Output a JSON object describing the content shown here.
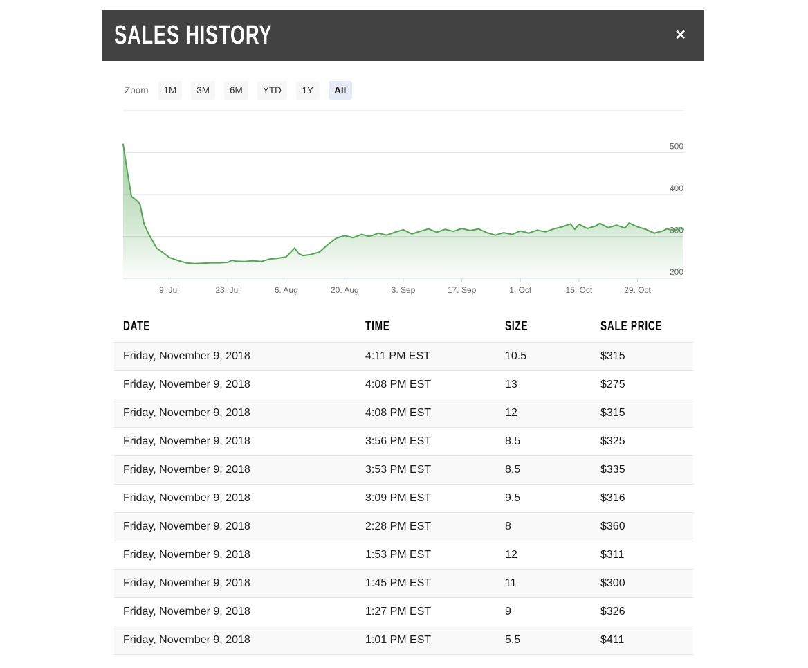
{
  "modal": {
    "title": "SALES HISTORY",
    "close_icon": "✕"
  },
  "range_selector": {
    "zoom_label": "Zoom",
    "buttons": [
      {
        "label": "1M",
        "selected": false
      },
      {
        "label": "3M",
        "selected": false
      },
      {
        "label": "6M",
        "selected": false
      },
      {
        "label": "YTD",
        "selected": false
      },
      {
        "label": "1Y",
        "selected": false
      },
      {
        "label": "All",
        "selected": true
      }
    ]
  },
  "chart_data": {
    "type": "area",
    "title": "",
    "xlabel": "",
    "ylabel": "",
    "legend": false,
    "grid": true,
    "y_labels_position": "right",
    "x_axis": {
      "range": [
        "2018-06-28",
        "2018-11-09"
      ],
      "ticks": [
        {
          "label": "9. Jul",
          "date": "2018-07-09"
        },
        {
          "label": "23. Jul",
          "date": "2018-07-23"
        },
        {
          "label": "6. Aug",
          "date": "2018-08-06"
        },
        {
          "label": "20. Aug",
          "date": "2018-08-20"
        },
        {
          "label": "3. Sep",
          "date": "2018-09-03"
        },
        {
          "label": "17. Sep",
          "date": "2018-09-17"
        },
        {
          "label": "1. Oct",
          "date": "2018-10-01"
        },
        {
          "label": "15. Oct",
          "date": "2018-10-15"
        },
        {
          "label": "29. Oct",
          "date": "2018-10-29"
        }
      ]
    },
    "y_axis": {
      "range": [
        200,
        600
      ],
      "tick_step": 100,
      "tick_labels": [
        "500",
        "400",
        "300",
        "200"
      ]
    },
    "series": [
      {
        "name": "Sale Price",
        "color": "#56a556",
        "points": [
          [
            "2018-06-28",
            520
          ],
          [
            "2018-06-29",
            455
          ],
          [
            "2018-06-30",
            395
          ],
          [
            "2018-07-01",
            388
          ],
          [
            "2018-07-02",
            378
          ],
          [
            "2018-07-03",
            330
          ],
          [
            "2018-07-04",
            308
          ],
          [
            "2018-07-06",
            272
          ],
          [
            "2018-07-08",
            258
          ],
          [
            "2018-07-09",
            250
          ],
          [
            "2018-07-11",
            243
          ],
          [
            "2018-07-13",
            237
          ],
          [
            "2018-07-15",
            235
          ],
          [
            "2018-07-17",
            236
          ],
          [
            "2018-07-19",
            237
          ],
          [
            "2018-07-21",
            237
          ],
          [
            "2018-07-23",
            238
          ],
          [
            "2018-07-24",
            243
          ],
          [
            "2018-07-25",
            241
          ],
          [
            "2018-07-27",
            240
          ],
          [
            "2018-07-29",
            242
          ],
          [
            "2018-07-31",
            240
          ],
          [
            "2018-08-02",
            246
          ],
          [
            "2018-08-04",
            248
          ],
          [
            "2018-08-06",
            251
          ],
          [
            "2018-08-08",
            272
          ],
          [
            "2018-08-09",
            259
          ],
          [
            "2018-08-10",
            254
          ],
          [
            "2018-08-12",
            257
          ],
          [
            "2018-08-14",
            263
          ],
          [
            "2018-08-16",
            281
          ],
          [
            "2018-08-18",
            296
          ],
          [
            "2018-08-20",
            302
          ],
          [
            "2018-08-22",
            297
          ],
          [
            "2018-08-24",
            305
          ],
          [
            "2018-08-26",
            300
          ],
          [
            "2018-08-28",
            308
          ],
          [
            "2018-08-30",
            303
          ],
          [
            "2018-09-01",
            310
          ],
          [
            "2018-09-03",
            316
          ],
          [
            "2018-09-05",
            306
          ],
          [
            "2018-09-07",
            312
          ],
          [
            "2018-09-09",
            318
          ],
          [
            "2018-09-11",
            310
          ],
          [
            "2018-09-13",
            317
          ],
          [
            "2018-09-15",
            312
          ],
          [
            "2018-09-17",
            319
          ],
          [
            "2018-09-19",
            314
          ],
          [
            "2018-09-21",
            318
          ],
          [
            "2018-09-23",
            309
          ],
          [
            "2018-09-25",
            303
          ],
          [
            "2018-09-27",
            309
          ],
          [
            "2018-09-29",
            305
          ],
          [
            "2018-10-01",
            313
          ],
          [
            "2018-10-03",
            308
          ],
          [
            "2018-10-05",
            315
          ],
          [
            "2018-10-07",
            311
          ],
          [
            "2018-10-09",
            318
          ],
          [
            "2018-10-11",
            323
          ],
          [
            "2018-10-13",
            330
          ],
          [
            "2018-10-14",
            317
          ],
          [
            "2018-10-15",
            329
          ],
          [
            "2018-10-17",
            319
          ],
          [
            "2018-10-19",
            325
          ],
          [
            "2018-10-20",
            331
          ],
          [
            "2018-10-22",
            321
          ],
          [
            "2018-10-24",
            327
          ],
          [
            "2018-10-26",
            320
          ],
          [
            "2018-10-27",
            332
          ],
          [
            "2018-10-29",
            323
          ],
          [
            "2018-10-31",
            317
          ],
          [
            "2018-11-02",
            308
          ],
          [
            "2018-11-04",
            313
          ],
          [
            "2018-11-05",
            318
          ],
          [
            "2018-11-07",
            314
          ],
          [
            "2018-11-08",
            321
          ],
          [
            "2018-11-09",
            317
          ]
        ]
      }
    ]
  },
  "table": {
    "columns": [
      "DATE",
      "TIME",
      "SIZE",
      "SALE PRICE"
    ],
    "rows": [
      {
        "date": "Friday, November 9, 2018",
        "time": "4:11 PM EST",
        "size": "10.5",
        "price": "$315"
      },
      {
        "date": "Friday, November 9, 2018",
        "time": "4:08 PM EST",
        "size": "13",
        "price": "$275"
      },
      {
        "date": "Friday, November 9, 2018",
        "time": "4:08 PM EST",
        "size": "12",
        "price": "$315"
      },
      {
        "date": "Friday, November 9, 2018",
        "time": "3:56 PM EST",
        "size": "8.5",
        "price": "$325"
      },
      {
        "date": "Friday, November 9, 2018",
        "time": "3:53 PM EST",
        "size": "8.5",
        "price": "$335"
      },
      {
        "date": "Friday, November 9, 2018",
        "time": "3:09 PM EST",
        "size": "9.5",
        "price": "$316"
      },
      {
        "date": "Friday, November 9, 2018",
        "time": "2:28 PM EST",
        "size": "8",
        "price": "$360"
      },
      {
        "date": "Friday, November 9, 2018",
        "time": "1:53 PM EST",
        "size": "12",
        "price": "$311"
      },
      {
        "date": "Friday, November 9, 2018",
        "time": "1:45 PM EST",
        "size": "11",
        "price": "$300"
      },
      {
        "date": "Friday, November 9, 2018",
        "time": "1:27 PM EST",
        "size": "9",
        "price": "$326"
      },
      {
        "date": "Friday, November 9, 2018",
        "time": "1:01 PM EST",
        "size": "5.5",
        "price": "$411"
      }
    ]
  },
  "colors": {
    "header_bg": "#424242",
    "line_green": "#56a556",
    "selected_range_bg": "#e6ebf5",
    "range_btn_bg": "#f7f7f7",
    "grid_line": "#e6e6e6",
    "axis_line": "#ccd6eb",
    "axis_text": "#666666",
    "row_alt_bg": "#f9f9f9"
  }
}
